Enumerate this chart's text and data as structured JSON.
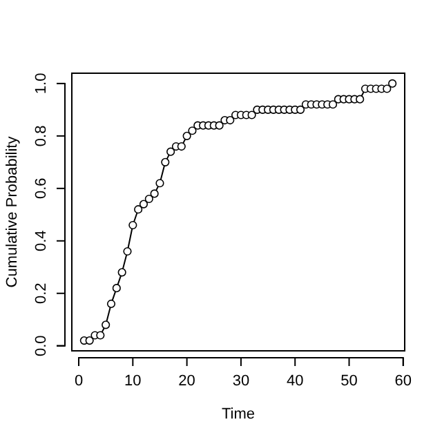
{
  "chart_data": {
    "type": "line",
    "xlabel": "Time",
    "ylabel": "Cumulative Probability",
    "marker": "circle",
    "grid": false,
    "x": [
      1,
      2,
      3,
      4,
      5,
      6,
      7,
      8,
      9,
      10,
      11,
      12,
      13,
      14,
      15,
      16,
      17,
      18,
      19,
      20,
      21,
      22,
      23,
      24,
      25,
      26,
      27,
      28,
      29,
      30,
      31,
      32,
      33,
      34,
      35,
      36,
      37,
      38,
      39,
      40,
      41,
      42,
      43,
      44,
      45,
      46,
      47,
      48,
      49,
      50,
      51,
      52,
      53,
      54,
      55,
      56,
      57,
      58
    ],
    "series": [
      {
        "color": "#000000",
        "values": [
          0.02,
          0.02,
          0.04,
          0.04,
          0.08,
          0.16,
          0.22,
          0.28,
          0.36,
          0.46,
          0.52,
          0.54,
          0.56,
          0.58,
          0.62,
          0.7,
          0.74,
          0.76,
          0.76,
          0.8,
          0.82,
          0.84,
          0.84,
          0.84,
          0.84,
          0.84,
          0.86,
          0.86,
          0.88,
          0.88,
          0.88,
          0.88,
          0.9,
          0.9,
          0.9,
          0.9,
          0.9,
          0.9,
          0.9,
          0.9,
          0.9,
          0.92,
          0.92,
          0.92,
          0.92,
          0.92,
          0.92,
          0.94,
          0.94,
          0.94,
          0.94,
          0.94,
          0.98,
          0.98,
          0.98,
          0.98,
          0.98,
          1.0
        ]
      }
    ],
    "xlim": [
      -1.28,
      60.28
    ],
    "ylim": [
      -0.0192,
      1.0392
    ],
    "xticks": [
      0,
      10,
      20,
      30,
      40,
      50,
      60
    ],
    "yticks": [
      {
        "value": 0,
        "label": "0.0"
      },
      {
        "value": 0.2,
        "label": "0.2"
      },
      {
        "value": 0.4,
        "label": "0.4"
      },
      {
        "value": 0.6,
        "label": "0.6"
      },
      {
        "value": 0.8,
        "label": "0.8"
      },
      {
        "value": 1,
        "label": "1.0"
      }
    ]
  }
}
